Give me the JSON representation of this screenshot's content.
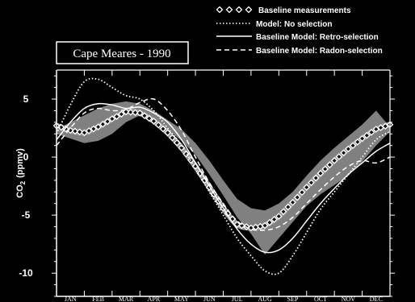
{
  "chart_data": {
    "type": "line",
    "title": "Cape Meares - 1990",
    "ylabel_main": "CO",
    "ylabel_sub": "2",
    "ylabel_unit": "(ppmv)",
    "xlabel": "",
    "categories": [
      "JAN",
      "FEB",
      "MAR",
      "APR",
      "MAY",
      "JUN",
      "JUL",
      "AUG",
      "SEP",
      "OCT",
      "NOV",
      "DEC"
    ],
    "y_ticks": [
      "5",
      "0",
      "-5",
      "-10"
    ],
    "y_tick_values": [
      5,
      0,
      -5,
      -10
    ],
    "ylim": [
      -12,
      7.5
    ],
    "xlim": [
      0,
      12
    ],
    "grid": false,
    "legend_position": "top-right",
    "band": {
      "x": [
        0.0,
        0.5,
        1.0,
        1.5,
        2.0,
        2.5,
        3.0,
        3.5,
        4.0,
        4.5,
        5.0,
        5.5,
        6.0,
        6.5,
        7.0,
        7.5,
        8.0,
        8.5,
        9.0,
        9.5,
        10.0,
        10.5,
        11.0,
        11.5,
        12.0
      ],
      "upper": [
        2.4,
        3.0,
        3.6,
        4.2,
        4.6,
        4.8,
        4.6,
        4.0,
        3.2,
        2.4,
        1.2,
        -0.3,
        -2.0,
        -3.6,
        -4.4,
        -4.6,
        -4.0,
        -3.0,
        -1.6,
        -0.3,
        0.8,
        1.8,
        2.8,
        4.0,
        2.6
      ],
      "lower": [
        2.0,
        1.6,
        1.2,
        1.4,
        2.0,
        3.0,
        3.6,
        3.2,
        2.4,
        1.4,
        0.2,
        -1.5,
        -3.3,
        -5.2,
        -6.6,
        -8.4,
        -7.0,
        -5.6,
        -4.2,
        -3.2,
        -2.4,
        -1.6,
        -0.4,
        1.0,
        2.2
      ]
    },
    "series": [
      {
        "name": "Baseline measurements",
        "style": "diamonds",
        "color": "#ffffff",
        "x": [
          0.0,
          0.5,
          1.0,
          1.5,
          2.0,
          2.5,
          3.0,
          3.5,
          4.0,
          4.5,
          5.0,
          5.5,
          6.0,
          6.5,
          7.0,
          7.5,
          8.0,
          8.5,
          9.0,
          9.5,
          10.0,
          10.5,
          11.0,
          11.5,
          12.0
        ],
        "y": [
          2.7,
          2.3,
          2.1,
          2.6,
          3.3,
          3.9,
          3.8,
          3.1,
          2.1,
          0.8,
          -0.8,
          -2.6,
          -4.4,
          -5.8,
          -6.1,
          -5.9,
          -5.1,
          -3.9,
          -2.6,
          -1.4,
          -0.3,
          0.7,
          1.6,
          2.4,
          2.8
        ]
      },
      {
        "name": "Model: No selection",
        "style": "dotted",
        "color": "#ffffff",
        "x": [
          0.0,
          0.5,
          1.0,
          1.5,
          2.0,
          2.5,
          3.0,
          3.5,
          4.0,
          4.5,
          5.0,
          5.5,
          6.0,
          6.5,
          7.0,
          7.5,
          8.0,
          8.5,
          9.0,
          9.5,
          10.0,
          10.5,
          11.0,
          11.5,
          12.0
        ],
        "y": [
          2.0,
          4.5,
          6.5,
          6.7,
          6.0,
          5.3,
          5.0,
          4.0,
          2.5,
          1.0,
          -1.0,
          -3.0,
          -5.0,
          -7.0,
          -8.5,
          -9.8,
          -10.0,
          -8.5,
          -6.5,
          -4.5,
          -3.0,
          -1.5,
          0.0,
          1.5,
          2.2
        ]
      },
      {
        "name": "Baseline Model: Retro-selection",
        "style": "solid",
        "color": "#ffffff",
        "x": [
          0.0,
          0.5,
          1.0,
          1.5,
          2.0,
          2.5,
          3.0,
          3.5,
          4.0,
          4.5,
          5.0,
          5.5,
          6.0,
          6.5,
          7.0,
          7.5,
          8.0,
          8.5,
          9.0,
          9.5,
          10.0,
          10.5,
          11.0,
          11.5,
          12.0
        ],
        "y": [
          1.5,
          3.0,
          4.2,
          4.6,
          4.5,
          4.2,
          4.3,
          3.8,
          3.0,
          1.5,
          -0.5,
          -2.5,
          -4.4,
          -6.2,
          -7.5,
          -8.2,
          -8.0,
          -7.0,
          -5.5,
          -4.0,
          -2.7,
          -1.5,
          -0.5,
          0.5,
          1.2
        ]
      },
      {
        "name": "Baseline Model: Radon-selection",
        "style": "dashed",
        "color": "#ffffff",
        "x": [
          0.0,
          0.5,
          1.0,
          1.5,
          2.0,
          2.5,
          3.0,
          3.5,
          4.0,
          4.5,
          5.0,
          5.5,
          6.0,
          6.5,
          7.0,
          7.5,
          8.0,
          8.5,
          9.0,
          9.5,
          10.0,
          10.5,
          11.0,
          11.5,
          12.0
        ],
        "y": [
          1.0,
          2.5,
          3.8,
          4.2,
          4.0,
          4.1,
          4.7,
          5.0,
          4.0,
          2.3,
          0.0,
          -2.2,
          -4.0,
          -5.5,
          -6.2,
          -6.3,
          -6.0,
          -5.2,
          -4.0,
          -2.8,
          -1.7,
          -0.8,
          -0.3,
          -0.5,
          0.0
        ]
      }
    ],
    "colors": {
      "background": "#000000",
      "foreground": "#ffffff",
      "band": "#808080",
      "title_box": "#000000"
    }
  }
}
